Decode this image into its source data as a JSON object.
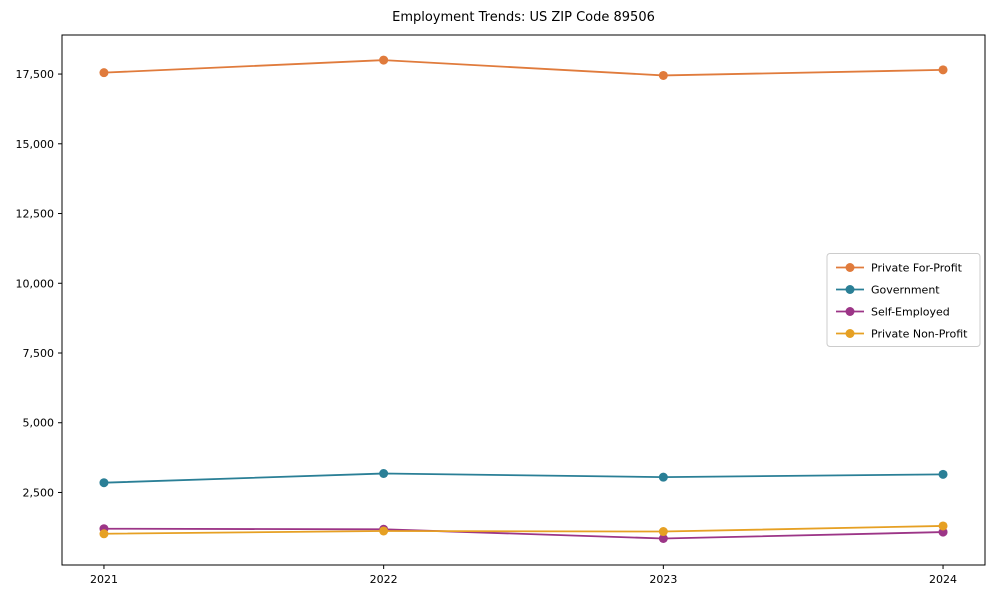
{
  "chart_data": {
    "type": "line",
    "title": "Employment Trends: US ZIP Code 89506",
    "xlabel": "",
    "ylabel": "",
    "x": [
      2021,
      2022,
      2023,
      2024
    ],
    "x_labels": [
      "2021",
      "2022",
      "2023",
      "2024"
    ],
    "series": [
      {
        "name": "Private For-Profit",
        "color": "#e07b3c",
        "values": [
          17550,
          18000,
          17450,
          17650
        ]
      },
      {
        "name": "Government",
        "color": "#2a7f96",
        "values": [
          2850,
          3180,
          3050,
          3150
        ]
      },
      {
        "name": "Self-Employed",
        "color": "#9c3587",
        "values": [
          1200,
          1180,
          850,
          1080
        ]
      },
      {
        "name": "Private Non-Profit",
        "color": "#e6a023",
        "values": [
          1020,
          1120,
          1100,
          1300
        ]
      }
    ],
    "yticks": [
      2500,
      5000,
      7500,
      10000,
      12500,
      15000,
      17500
    ],
    "ytick_labels": [
      "2,500",
      "5,000",
      "7,500",
      "10,000",
      "12,500",
      "15,000",
      "17,500"
    ],
    "xlim": [
      2020.85,
      2024.15
    ],
    "ylim": [
      -100,
      18900
    ],
    "grid": false,
    "legend_position": "center right",
    "marker": "circle",
    "line_width": 1.8,
    "marker_radius": 4.5
  }
}
